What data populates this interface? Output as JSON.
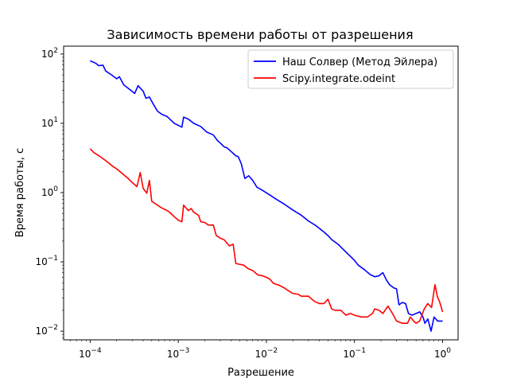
{
  "chart_data": {
    "type": "line",
    "title": "Зависимость времени работы от разрешения",
    "xlabel": "Разрешение",
    "ylabel": "Время работы, с",
    "xscale": "log",
    "yscale": "log",
    "xlim": [
      5e-05,
      1.5
    ],
    "ylim": [
      0.0075,
      130
    ],
    "grid": false,
    "legend_position": "top-right",
    "x_ticks": [
      {
        "value": 0.0001,
        "base": "10",
        "exp": "−4"
      },
      {
        "value": 0.001,
        "base": "10",
        "exp": "−3"
      },
      {
        "value": 0.01,
        "base": "10",
        "exp": "−2"
      },
      {
        "value": 0.1,
        "base": "10",
        "exp": "−1"
      },
      {
        "value": 1,
        "base": "10",
        "exp": "0"
      }
    ],
    "y_ticks": [
      {
        "value": 0.01,
        "base": "10",
        "exp": "−2"
      },
      {
        "value": 0.1,
        "base": "10",
        "exp": "−1"
      },
      {
        "value": 1,
        "base": "10",
        "exp": "0"
      },
      {
        "value": 10,
        "base": "10",
        "exp": "1"
      },
      {
        "value": 100,
        "base": "10",
        "exp": "2"
      }
    ],
    "series": [
      {
        "name": "Наш Солвер (Метод Эйлера)",
        "color": "#0000ff",
        "points": [
          [
            0.0001,
            80
          ],
          [
            0.000115,
            74
          ],
          [
            0.000125,
            68
          ],
          [
            0.00014,
            69
          ],
          [
            0.00015,
            57
          ],
          [
            0.000175,
            50
          ],
          [
            0.0002,
            44
          ],
          [
            0.000215,
            47
          ],
          [
            0.00024,
            36
          ],
          [
            0.00028,
            31
          ],
          [
            0.00032,
            27
          ],
          [
            0.00035,
            35
          ],
          [
            0.0004,
            29
          ],
          [
            0.00043,
            23
          ],
          [
            0.00047,
            24
          ],
          [
            0.00052,
            19
          ],
          [
            0.00058,
            15
          ],
          [
            0.00065,
            13.5
          ],
          [
            0.00075,
            12.5
          ],
          [
            0.0009,
            10
          ],
          [
            0.0011,
            8.8
          ],
          [
            0.00115,
            12.3
          ],
          [
            0.0013,
            11.5
          ],
          [
            0.0015,
            10
          ],
          [
            0.0018,
            9
          ],
          [
            0.0021,
            7.5
          ],
          [
            0.0025,
            6.8
          ],
          [
            0.0028,
            5.6
          ],
          [
            0.003,
            5.2
          ],
          [
            0.0033,
            4.6
          ],
          [
            0.0036,
            4.4
          ],
          [
            0.004,
            3.9
          ],
          [
            0.0045,
            3.4
          ],
          [
            0.0048,
            3.3
          ],
          [
            0.0052,
            2.6
          ],
          [
            0.0057,
            1.6
          ],
          [
            0.0063,
            1.75
          ],
          [
            0.007,
            1.5
          ],
          [
            0.0078,
            1.2
          ],
          [
            0.009,
            1.08
          ],
          [
            0.011,
            0.92
          ],
          [
            0.013,
            0.8
          ],
          [
            0.016,
            0.68
          ],
          [
            0.02,
            0.56
          ],
          [
            0.025,
            0.47
          ],
          [
            0.03,
            0.39
          ],
          [
            0.037,
            0.33
          ],
          [
            0.045,
            0.27
          ],
          [
            0.05,
            0.24
          ],
          [
            0.055,
            0.21
          ],
          [
            0.065,
            0.18
          ],
          [
            0.075,
            0.15
          ],
          [
            0.09,
            0.12
          ],
          [
            0.1,
            0.105
          ],
          [
            0.11,
            0.09
          ],
          [
            0.13,
            0.077
          ],
          [
            0.15,
            0.066
          ],
          [
            0.17,
            0.061
          ],
          [
            0.19,
            0.063
          ],
          [
            0.21,
            0.07
          ],
          [
            0.23,
            0.055
          ],
          [
            0.25,
            0.047
          ],
          [
            0.28,
            0.042
          ],
          [
            0.3,
            0.041
          ],
          [
            0.32,
            0.024
          ],
          [
            0.35,
            0.026
          ],
          [
            0.38,
            0.025
          ],
          [
            0.41,
            0.018
          ],
          [
            0.45,
            0.017
          ],
          [
            0.5,
            0.018
          ],
          [
            0.55,
            0.019
          ],
          [
            0.6,
            0.016
          ],
          [
            0.63,
            0.013
          ],
          [
            0.68,
            0.015
          ],
          [
            0.74,
            0.01
          ],
          [
            0.8,
            0.016
          ],
          [
            0.88,
            0.014
          ],
          [
            1.0,
            0.014
          ]
        ]
      },
      {
        "name": "Scipy.integrate.odeint",
        "color": "#ff0000",
        "points": [
          [
            0.0001,
            4.3
          ],
          [
            0.00011,
            3.8
          ],
          [
            0.00013,
            3.3
          ],
          [
            0.00015,
            2.9
          ],
          [
            0.00018,
            2.4
          ],
          [
            0.0002,
            2.2
          ],
          [
            0.00023,
            1.9
          ],
          [
            0.00027,
            1.6
          ],
          [
            0.0003,
            1.4
          ],
          [
            0.00034,
            1.22
          ],
          [
            0.00037,
            1.95
          ],
          [
            0.0004,
            1.15
          ],
          [
            0.00044,
            0.98
          ],
          [
            0.00047,
            1.5
          ],
          [
            0.0005,
            0.75
          ],
          [
            0.00058,
            0.66
          ],
          [
            0.00065,
            0.6
          ],
          [
            0.00075,
            0.55
          ],
          [
            0.0008,
            0.52
          ],
          [
            0.0009,
            0.45
          ],
          [
            0.001,
            0.4
          ],
          [
            0.0011,
            0.38
          ],
          [
            0.00115,
            0.66
          ],
          [
            0.0013,
            0.55
          ],
          [
            0.0014,
            0.59
          ],
          [
            0.0015,
            0.52
          ],
          [
            0.0017,
            0.47
          ],
          [
            0.0018,
            0.38
          ],
          [
            0.002,
            0.37
          ],
          [
            0.0022,
            0.34
          ],
          [
            0.0025,
            0.34
          ],
          [
            0.0027,
            0.24
          ],
          [
            0.003,
            0.22
          ],
          [
            0.0033,
            0.21
          ],
          [
            0.0038,
            0.17
          ],
          [
            0.0042,
            0.18
          ],
          [
            0.0045,
            0.095
          ],
          [
            0.005,
            0.092
          ],
          [
            0.0055,
            0.09
          ],
          [
            0.0062,
            0.08
          ],
          [
            0.007,
            0.075
          ],
          [
            0.008,
            0.065
          ],
          [
            0.009,
            0.063
          ],
          [
            0.01,
            0.06
          ],
          [
            0.011,
            0.056
          ],
          [
            0.012,
            0.049
          ],
          [
            0.014,
            0.046
          ],
          [
            0.016,
            0.042
          ],
          [
            0.018,
            0.038
          ],
          [
            0.02,
            0.035
          ],
          [
            0.023,
            0.034
          ],
          [
            0.025,
            0.032
          ],
          [
            0.03,
            0.032
          ],
          [
            0.035,
            0.027
          ],
          [
            0.04,
            0.025
          ],
          [
            0.045,
            0.025
          ],
          [
            0.05,
            0.029
          ],
          [
            0.055,
            0.021
          ],
          [
            0.06,
            0.02
          ],
          [
            0.07,
            0.02
          ],
          [
            0.08,
            0.017
          ],
          [
            0.09,
            0.018
          ],
          [
            0.1,
            0.017
          ],
          [
            0.12,
            0.016
          ],
          [
            0.14,
            0.016
          ],
          [
            0.16,
            0.018
          ],
          [
            0.17,
            0.021
          ],
          [
            0.19,
            0.02
          ],
          [
            0.21,
            0.018
          ],
          [
            0.24,
            0.023
          ],
          [
            0.27,
            0.018
          ],
          [
            0.3,
            0.014
          ],
          [
            0.35,
            0.013
          ],
          [
            0.4,
            0.013
          ],
          [
            0.43,
            0.016
          ],
          [
            0.47,
            0.014
          ],
          [
            0.5,
            0.013
          ],
          [
            0.55,
            0.014
          ],
          [
            0.62,
            0.021
          ],
          [
            0.68,
            0.025
          ],
          [
            0.75,
            0.022
          ],
          [
            0.82,
            0.047
          ],
          [
            0.87,
            0.032
          ],
          [
            0.93,
            0.026
          ],
          [
            1.0,
            0.019
          ]
        ]
      }
    ]
  }
}
